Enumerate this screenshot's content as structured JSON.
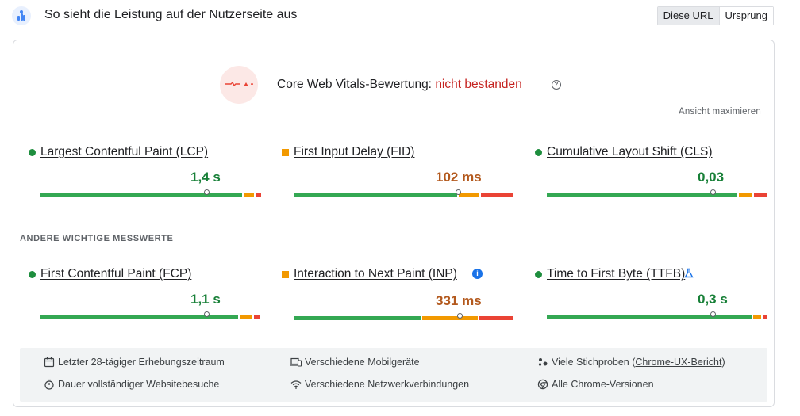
{
  "header": {
    "title": "So sieht die Leistung auf der Nutzerseite aus",
    "toggle_active": "Diese URL",
    "toggle_inactive": "Ursprung"
  },
  "assessment": {
    "label": "Core Web Vitals-Bewertung:",
    "status": "nicht bestanden",
    "expand_link": "Ansicht maximieren",
    "status_color": "#c5221f"
  },
  "core_metrics": [
    {
      "name": "Largest Contentful Paint (LCP)",
      "value": "1,4 s",
      "rating": "good"
    },
    {
      "name": "First Input Delay (FID)",
      "value": "102 ms",
      "rating": "needs-improvement"
    },
    {
      "name": "Cumulative Layout Shift (CLS)",
      "value": "0,03",
      "rating": "good"
    }
  ],
  "other_section_label": "ANDERE WICHTIGE MESSWERTE",
  "other_metrics": [
    {
      "name": "First Contentful Paint (FCP)",
      "value": "1,1 s",
      "rating": "good"
    },
    {
      "name": "Interaction to Next Paint (INP)",
      "value": "331 ms",
      "rating": "needs-improvement",
      "icon": "info-icon"
    },
    {
      "name": "Time to First Byte (TTFB)",
      "value": "0,3 s",
      "rating": "good",
      "icon": "flask-icon"
    }
  ],
  "info": {
    "period": "Letzter 28-tägiger Erhebungszeitraum",
    "visits": "Dauer vollständiger Websitebesuche",
    "devices": "Verschiedene Mobilgeräte",
    "network": "Verschiedene Netzwerkverbindungen",
    "samples_prefix": "Viele Stichproben (",
    "samples_link": "Chrome-UX-Bericht",
    "samples_suffix": ")",
    "versions": "Alle Chrome-Versionen"
  },
  "colors": {
    "good": "#188038",
    "needs_improvement": "#b3591d",
    "poor": "#c5221f",
    "bar_good": "#34a853",
    "bar_ni": "#f29900",
    "bar_poor": "#ea4335"
  }
}
